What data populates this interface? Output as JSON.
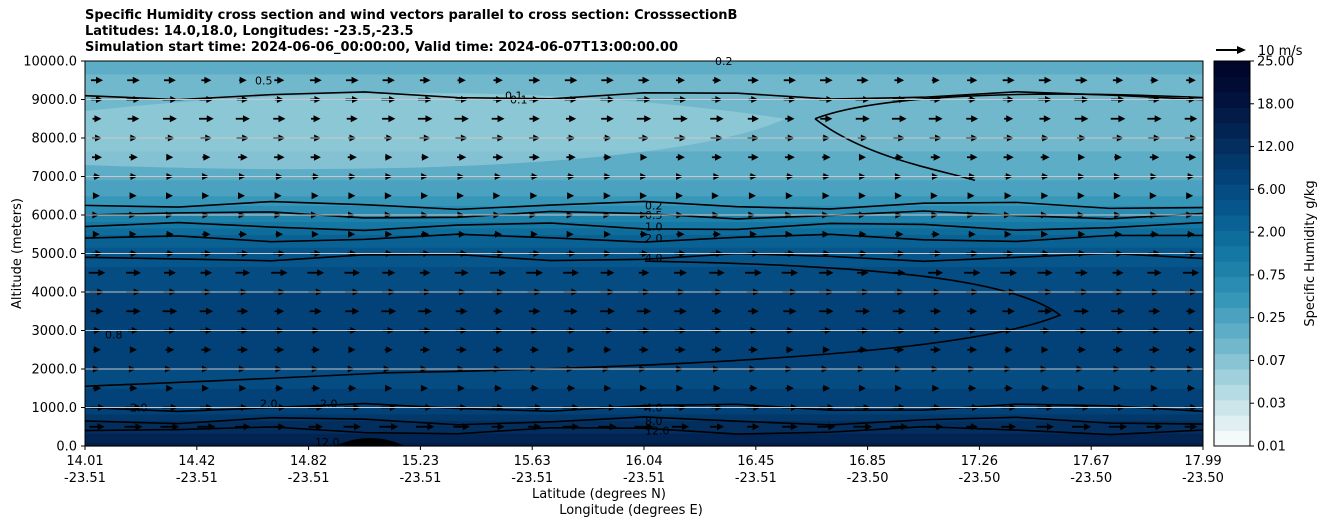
{
  "title_lines": [
    "Specific Humidity cross section and wind vectors parallel to cross section: CrosssectionB",
    "Latitudes: 14.0,18.0, Longitudes: -23.5,-23.5",
    "Simulation start time: 2024-06-06_00:00:00, Valid time: 2024-06-07T13:00:00.00"
  ],
  "chart_data": {
    "type": "heatmap",
    "subtype": "filled contour cross-section with wind vectors",
    "ylabel": "Altitude (meters)",
    "xlabel": "Latitude (degrees N)",
    "xlabel2": "Longitude (degrees E)",
    "ylim": [
      0,
      10000
    ],
    "yticks": [
      "0.0",
      "1000.0",
      "2000.0",
      "3000.0",
      "4000.0",
      "5000.0",
      "6000.0",
      "7000.0",
      "8000.0",
      "9000.0",
      "10000.0"
    ],
    "xticks_lat": [
      "14.01",
      "14.42",
      "14.82",
      "15.23",
      "15.63",
      "16.04",
      "16.45",
      "16.85",
      "17.26",
      "17.67",
      "17.99"
    ],
    "xticks_lon": [
      "-23.51",
      "-23.51",
      "-23.51",
      "-23.51",
      "-23.51",
      "-23.51",
      "-23.51",
      "-23.50",
      "-23.50",
      "-23.50",
      "-23.50"
    ],
    "colorbar": {
      "label": "Specific Humidity g/kg",
      "ticks": [
        "0.01",
        "0.03",
        "0.07",
        "0.25",
        "0.75",
        "2.00",
        "6.00",
        "12.00",
        "18.00",
        "25.00"
      ],
      "colors": [
        "#f4f9fa",
        "#e0eff2",
        "#cce5ea",
        "#b5dbe4",
        "#9fd0dc",
        "#88c4d4",
        "#72b8cc",
        "#5eadc6",
        "#4aa2c0",
        "#3797b9",
        "#2a8cb2",
        "#1e81aa",
        "#1577a3",
        "#0f6d9c",
        "#0a6294",
        "#06568c",
        "#044c82",
        "#034278",
        "#03386b",
        "#032e5e",
        "#022452",
        "#021b47",
        "#01123d",
        "#010b34",
        "#01062c"
      ]
    },
    "quiver_key": {
      "label": "10 m/s",
      "speed": 10
    },
    "contour_levels": [
      {
        "label": "0.1",
        "altitude_m": 9100
      },
      {
        "label": "0.2",
        "altitude_m": 6250
      },
      {
        "label": "0.5",
        "altitude_m": 6000
      },
      {
        "label": "1.0",
        "altitude_m": 5700
      },
      {
        "label": "2.0",
        "altitude_m": 5400
      },
      {
        "label": "4.0",
        "altitude_m": 4900
      },
      {
        "label": "4.0",
        "altitude_m": 1000
      },
      {
        "label": "8.0",
        "altitude_m": 650
      },
      {
        "label": "12.0",
        "altitude_m": 400
      },
      {
        "label": "0.8",
        "altitude_m": 2900
      },
      {
        "label": "2.0",
        "altitude_m": 1000
      },
      {
        "label": "2.0",
        "altitude_m": 1100
      },
      {
        "label": "2.0",
        "altitude_m": 1100
      },
      {
        "label": "0.5",
        "altitude_m": 9500
      },
      {
        "label": "0.1",
        "altitude_m": 9000
      },
      {
        "label": "0.2",
        "altitude_m": 10000
      },
      {
        "label": "12.0",
        "altitude_m": 100
      }
    ],
    "humidity_profile": [
      {
        "altitude_m": 0,
        "q": 16.0
      },
      {
        "altitude_m": 500,
        "q": 12.0
      },
      {
        "altitude_m": 1000,
        "q": 7.0
      },
      {
        "altitude_m": 1500,
        "q": 6.5
      },
      {
        "altitude_m": 2000,
        "q": 6.5
      },
      {
        "altitude_m": 3000,
        "q": 7.0
      },
      {
        "altitude_m": 4000,
        "q": 6.5
      },
      {
        "altitude_m": 5000,
        "q": 3.5
      },
      {
        "altitude_m": 5500,
        "q": 2.0
      },
      {
        "altitude_m": 6000,
        "q": 0.7
      },
      {
        "altitude_m": 6500,
        "q": 0.3
      },
      {
        "altitude_m": 7000,
        "q": 0.2
      },
      {
        "altitude_m": 8000,
        "q": 0.1
      },
      {
        "altitude_m": 9000,
        "q": 0.1
      },
      {
        "altitude_m": 10000,
        "q": 0.15
      }
    ],
    "wind_profile": [
      {
        "altitude_m": 500,
        "u": 9
      },
      {
        "altitude_m": 1000,
        "u": 8
      },
      {
        "altitude_m": 1500,
        "u": 4
      },
      {
        "altitude_m": 2000,
        "u": 3
      },
      {
        "altitude_m": 2500,
        "u": 5
      },
      {
        "altitude_m": 3000,
        "u": 6
      },
      {
        "altitude_m": 3500,
        "u": 7
      },
      {
        "altitude_m": 4000,
        "u": 7
      },
      {
        "altitude_m": 4500,
        "u": 8
      },
      {
        "altitude_m": 5000,
        "u": 6
      },
      {
        "altitude_m": 5500,
        "u": 4
      },
      {
        "altitude_m": 6000,
        "u": 3
      },
      {
        "altitude_m": 6500,
        "u": 3
      },
      {
        "altitude_m": 7000,
        "u": 4
      },
      {
        "altitude_m": 7500,
        "u": 5
      },
      {
        "altitude_m": 8000,
        "u": 6
      },
      {
        "altitude_m": 8500,
        "u": 7
      },
      {
        "altitude_m": 9000,
        "u": 7
      },
      {
        "altitude_m": 9500,
        "u": 6
      }
    ]
  }
}
